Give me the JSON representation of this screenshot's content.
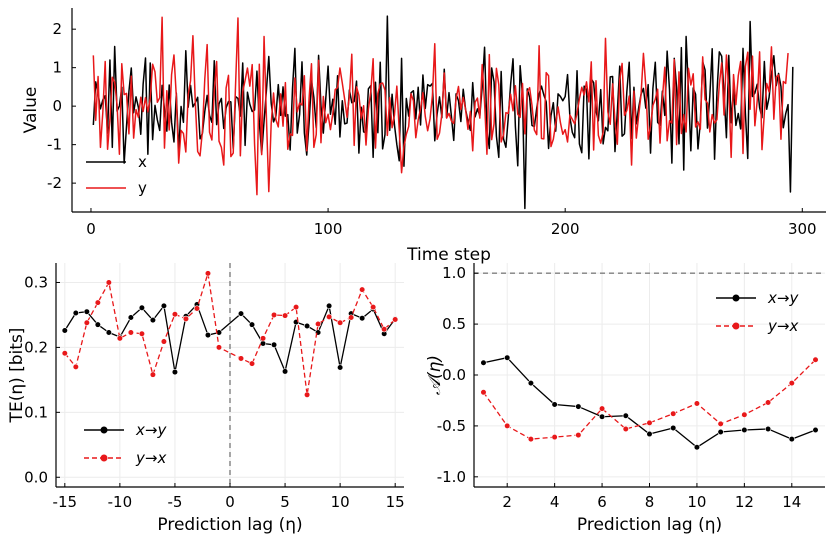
{
  "chart_data": [
    {
      "id": "top",
      "type": "line",
      "title": "",
      "xlabel": "Time step",
      "ylabel": "Value",
      "xlim": [
        -8,
        310
      ],
      "ylim": [
        -2.75,
        2.55
      ],
      "x_ticks": [
        0,
        100,
        200,
        300
      ],
      "x_tick_labels": [
        "0",
        "100",
        "200",
        "300"
      ],
      "y_ticks": [
        -2,
        -1,
        0,
        1,
        2
      ],
      "y_tick_labels": [
        "-2",
        "-1",
        "0",
        "1",
        "2"
      ],
      "legend_position": "lower-left",
      "series": [
        {
          "name": "x",
          "color": "#000000",
          "dash": "solid",
          "values": [
            -0.49,
            0.63,
            0.33,
            -0.07,
            0.16,
            0.27,
            -0.7,
            1.2,
            -1.07,
            1.55,
            -0.13,
            0.01,
            0.49,
            -1.48,
            -0.51,
            0.38,
            0.99,
            -0.17,
            0.24,
            -0.03,
            -0.73,
            0.57,
            1.25,
            -1.25,
            1.12,
            -0.87,
            0.02,
            -0.36,
            -0.63,
            0.54,
            -0.08,
            -0.65,
            0.55,
            -0.42,
            -0.93,
            0.34,
            -1.18,
            -0.01,
            -0.42,
            1.44,
            -0.03,
            0.54,
            -0.02,
            0.09,
            0.23,
            -0.85,
            -0.71,
            -0.14,
            0.28,
            -0.24,
            -0.42,
            1.18,
            -0.48,
            0.06,
            0.2,
            -0.58,
            -0.04,
            0.12,
            0.11,
            -1.1,
            0.25,
            0.2,
            -0.26,
            1.12,
            -1.02,
            0.36,
            0.05,
            -0.14,
            -0.1,
            0.91,
            -0.42,
            -1.23,
            -0.39,
            0.41,
            1.29,
            0.08,
            -0.41,
            -0.26,
            0.56,
            -0.24,
            0.5,
            -0.26,
            -0.22,
            -1.14,
            0.46,
            1.5,
            -0.7,
            -0.21,
            1.15,
            -0.7,
            -1.27,
            -0.43,
            0.67,
            0.23,
            -0.56,
            1.32,
            0.01,
            -0.7,
            0.17,
            1.04,
            -0.21,
            0.18,
            -0.47,
            0.79,
            -0.8,
            0.14,
            -0.46,
            -0.44,
            0.42,
            0.09,
            0.12,
            0.65,
            -1.22,
            -0.03,
            -0.67,
            -0.69,
            0.45,
            0.53,
            -1.33,
            0.62,
            -0.69,
            1.14,
            -1.11,
            -0.74,
            2.34,
            -0.63,
            0.31,
            -0.49,
            -1.0,
            -1.42,
            1.24,
            -1.56,
            0.2,
            -0.26,
            0.35,
            0.4,
            -0.33,
            0.49,
            -0.49,
            0.81,
            -0.06,
            0.56,
            0.52,
            0.59,
            -0.9,
            -0.2,
            0.24,
            -0.3,
            0.96,
            -0.3,
            0.35,
            -0.25,
            -0.89,
            0.32,
            0.14,
            -0.4,
            0.44,
            -0.09,
            -0.39,
            -0.63,
            0.61,
            -0.28,
            -0.07,
            -0.25,
            0.5,
            1.53,
            -0.6,
            -1.1,
            0.99,
            0.63,
            -0.78,
            -1.33,
            0.9,
            -0.85,
            -1.07,
            -0.29,
            0.57,
            1.23,
            -0.53,
            -1.55,
            1.05,
            0.26,
            -2.66,
            0.45,
            0.23,
            -0.5,
            -0.53,
            -0.05,
            0.31,
            0.52,
            0.29,
            0.11,
            -1.1,
            -0.25,
            0.09,
            -0.65,
            0.32,
            0.25,
            0.14,
            0.25,
            0.82,
            -0.29,
            -0.68,
            -0.82,
            0.92,
            -0.98,
            -1.21,
            0.52,
            0.42,
            -1.37,
            0.71,
            0.61,
            -0.13,
            -0.38,
            0.43,
            -0.98,
            -0.55,
            -0.64,
            0.76,
            0.77,
            -1.18,
            -0.13,
            1.04,
            -0.78,
            -0.72,
            0.37,
            1.14,
            -0.84,
            0.49,
            -0.46,
            -0.04,
            0.31,
            0.46,
            -0.05,
            0.56,
            -1.22,
            0.46,
            1.14,
            -0.42,
            -0.5,
            0.39,
            -0.24,
            1.43,
            0.42,
            -1.48,
            1.24,
            0.48,
            -0.98,
            1.52,
            -1.66,
            1.81,
            0.39,
            -1.16,
            0.47,
            0.31,
            -1.11,
            -0.42,
            1.15,
            0.94,
            -0.57,
            0.26,
            1.49,
            -1.38,
            0.35,
            1.41,
            1.3,
            0.33,
            -0.82,
            1.32,
            -0.43,
            0.45,
            -0.5,
            -0.19,
            -0.59,
            1.5,
            -0.18,
            -1.36,
            2.2,
            0.25,
            0.34,
            0.57,
            -0.04,
            -0.3,
            1.16,
            -0.08,
            0.23,
            0.84,
            1.31,
            0.53,
            0.85,
            0.51,
            -0.56,
            -0.2,
            0.04,
            -2.23,
            1.02
          ]
        },
        {
          "name": "y",
          "color": "#e8181a",
          "dash": "solid",
          "values": [
            1.32,
            -0.37,
            0.77,
            -1.07,
            -0.16,
            1.16,
            -1.12,
            -0.34,
            0.75,
            0.62,
            0.04,
            -1.25,
            1.1,
            0.3,
            0.33,
            -0.72,
            0.78,
            -0.83,
            -0.09,
            -0.29,
            0.23,
            -0.14,
            0.22,
            -0.15,
            0.21,
            1.09,
            0.89,
            0.1,
            0.22,
            2.31,
            -1.09,
            0.4,
            -0.62,
            0.82,
            1.33,
            0.25,
            -1.48,
            -0.63,
            -0.71,
            -1.19,
            0.3,
            0.66,
            1.83,
            0.1,
            -1.18,
            -1.29,
            -0.65,
            0.7,
            1.6,
            -0.68,
            -0.88,
            0.39,
            1.16,
            -0.91,
            -1.07,
            -1.53,
            0.47,
            0.8,
            -1.31,
            -1.22,
            0.58,
            2.29,
            -1.29,
            0.37,
            0.67,
            0.99,
            0.52,
            1.08,
            -0.99,
            -2.3,
            1.09,
            -1.26,
            1.81,
            -0.3,
            -2.22,
            -0.46,
            0.34,
            -0.35,
            -0.54,
            0.32,
            -0.52,
            0.61,
            -1.12,
            -0.72,
            -0.76,
            0.73,
            -0.15,
            0.08,
            0.03,
            0.79,
            -1.16,
            0.21,
            1.1,
            -1.07,
            -0.74,
            1.19,
            -0.95,
            0.25,
            -0.43,
            -0.21,
            -0.61,
            -0.19,
            0.43,
            0.48,
            0.99,
            0.6,
            0.18,
            -0.29,
            0.27,
            1.35,
            -1.02,
            0.5,
            0.28,
            -0.32,
            0.01,
            -1.01,
            -0.08,
            0.37,
            1.23,
            -1.09,
            0.33,
            0.58,
            0.6,
            0.42,
            -0.76,
            0.22,
            -0.56,
            -0.23,
            0.52,
            -0.61,
            -1.73,
            -1.04,
            -0.73,
            -0.53,
            0.32,
            0.14,
            -0.82,
            -0.36,
            -0.07,
            0.35,
            -0.27,
            -0.64,
            -0.33,
            0.27,
            1.62,
            -0.86,
            -0.7,
            -0.2,
            0.86,
            -0.31,
            -0.19,
            -0.38,
            -0.45,
            0.2,
            0.51,
            -0.09,
            0.23,
            -0.09,
            -0.6,
            -0.14,
            -1.16,
            0.1,
            0.21,
            -0.31,
            1.08,
            0.09,
            -1.25,
            1.34,
            -0.87,
            -0.46,
            0.98,
            0.56,
            -0.93,
            -0.74,
            -0.17,
            -0.19,
            0.31,
            -0.12,
            0.53,
            -0.21,
            -0.29,
            0.59,
            -0.72,
            0.37,
            0.48,
            0.02,
            -0.62,
            -0.74,
            1.57,
            -0.84,
            -0.85,
            0.87,
            0.79,
            -1.05,
            -0.86,
            -0.46,
            -0.02,
            -0.43,
            -0.73,
            -0.61,
            -0.93,
            -0.23,
            -0.34,
            -0.46,
            -0.18,
            0.19,
            0.49,
            0.29,
            0.63,
            0.11,
            1.15,
            -1.14,
            0.66,
            -0.76,
            -0.96,
            -0.68,
            1.76,
            -0.15,
            -0.47,
            0.58,
            -0.39,
            -0.99,
            0.69,
            1.11,
            -0.24,
            -0.11,
            0.26,
            -1.53,
            0.39,
            -0.83,
            -0.23,
            0.3,
            1.37,
            0.52,
            -0.86,
            -0.52,
            0.02,
            0.18,
            0.44,
            -0.96,
            0.2,
            1.01,
            -0.9,
            -0.38,
            -0.44,
            1.21,
            -1.0,
            0.89,
            -0.71,
            -0.22,
            -0.67,
            0.98,
            0.55,
            0.84,
            -0.54,
            -0.41,
            -0.6,
            1.28,
            0.17,
            0.08,
            -0.67,
            -0.22,
            -0.44,
            -0.35,
            0.56,
            1.12,
            -0.23,
            1.33,
            0.44,
            -1.33,
            0.82,
            0.04,
            0.79,
            1.16,
            -1.23,
            1.03,
            1.4,
            -0.08,
            1.3,
            -0.51,
            0.15,
            1.41,
            -1.13,
            -0.18,
            0.59,
            0.37,
            1.54,
            -0.34,
            0.76,
            0.81,
            -0.86,
            0.64,
            0.59,
            1.38
          ]
        }
      ]
    },
    {
      "id": "bottom-left",
      "type": "line",
      "title": "",
      "xlabel": "Prediction lag (η)",
      "ylabel": "TE(η) [bits]",
      "xlim": [
        -15.8,
        15.8
      ],
      "ylim": [
        -0.015,
        0.33
      ],
      "x_ticks": [
        -15,
        -10,
        -5,
        0,
        5,
        10,
        15
      ],
      "x_tick_labels": [
        "-15",
        "-10",
        "-5",
        "0",
        "5",
        "10",
        "15"
      ],
      "y_ticks": [
        0.0,
        0.1,
        0.2,
        0.3
      ],
      "y_tick_labels": [
        "0.0",
        "0.1",
        "0.2",
        "0.3"
      ],
      "vline_x": 0,
      "legend_position": "lower-left",
      "series": [
        {
          "name": "x→y",
          "color": "#000000",
          "dash": "solid",
          "x": [
            -15,
            -14,
            -13,
            -12,
            -11,
            -10,
            -9,
            -8,
            -7,
            -6,
            -5,
            -4,
            -3,
            -2,
            -1,
            1,
            2,
            3,
            4,
            5,
            6,
            7,
            8,
            9,
            10,
            11,
            12,
            13,
            14,
            15
          ],
          "values": [
            0.226,
            0.253,
            0.255,
            0.235,
            0.223,
            0.216,
            0.246,
            0.261,
            0.242,
            0.264,
            0.162,
            0.248,
            0.266,
            0.219,
            0.223,
            0.252,
            0.235,
            0.206,
            0.204,
            0.163,
            0.239,
            0.233,
            0.223,
            0.264,
            0.169,
            0.252,
            0.245,
            0.259,
            0.221,
            0.244
          ]
        },
        {
          "name": "y→x",
          "color": "#e8181a",
          "dash": "dashed",
          "x": [
            -15,
            -14,
            -13,
            -12,
            -11,
            -10,
            -9,
            -8,
            -7,
            -6,
            -5,
            -4,
            -3,
            -2,
            -1,
            1,
            2,
            3,
            4,
            5,
            6,
            7,
            8,
            9,
            10,
            11,
            12,
            13,
            14,
            15
          ],
          "values": [
            0.191,
            0.17,
            0.238,
            0.269,
            0.3,
            0.214,
            0.223,
            0.221,
            0.158,
            0.209,
            0.251,
            0.244,
            0.26,
            0.314,
            0.2,
            0.183,
            0.175,
            0.214,
            0.25,
            0.249,
            0.262,
            0.127,
            0.236,
            0.247,
            0.238,
            0.246,
            0.289,
            0.262,
            0.228,
            0.243
          ]
        }
      ]
    },
    {
      "id": "bottom-right",
      "type": "line",
      "title": "",
      "xlabel": "Prediction lag (η)",
      "ylabel": "𝒜(η)",
      "xlim": [
        0.6,
        15.4
      ],
      "ylim": [
        -1.1,
        1.1
      ],
      "x_ticks": [
        2,
        4,
        6,
        8,
        10,
        12,
        14
      ],
      "x_tick_labels": [
        "2",
        "4",
        "6",
        "8",
        "10",
        "12",
        "14"
      ],
      "y_ticks": [
        -1.0,
        -0.5,
        0.0,
        0.5,
        1.0
      ],
      "y_tick_labels": [
        "-1.0",
        "-0.5",
        "0.0",
        "0.5",
        "1.0"
      ],
      "hline_y": 1.0,
      "legend_position": "top-right",
      "series": [
        {
          "name": "x→y",
          "color": "#000000",
          "dash": "solid",
          "x": [
            1,
            2,
            3,
            4,
            5,
            6,
            7,
            8,
            9,
            10,
            11,
            12,
            13,
            14,
            15
          ],
          "values": [
            0.12,
            0.17,
            -0.08,
            -0.29,
            -0.31,
            -0.41,
            -0.4,
            -0.58,
            -0.52,
            -0.71,
            -0.56,
            -0.54,
            -0.53,
            -0.63,
            -0.54
          ]
        },
        {
          "name": "y→x",
          "color": "#e8181a",
          "dash": "dashed",
          "x": [
            1,
            2,
            3,
            4,
            5,
            6,
            7,
            8,
            9,
            10,
            11,
            12,
            13,
            14,
            15
          ],
          "values": [
            -0.17,
            -0.5,
            -0.63,
            -0.61,
            -0.59,
            -0.33,
            -0.53,
            -0.47,
            -0.38,
            -0.28,
            -0.48,
            -0.39,
            -0.27,
            -0.08,
            0.15
          ]
        }
      ]
    }
  ]
}
